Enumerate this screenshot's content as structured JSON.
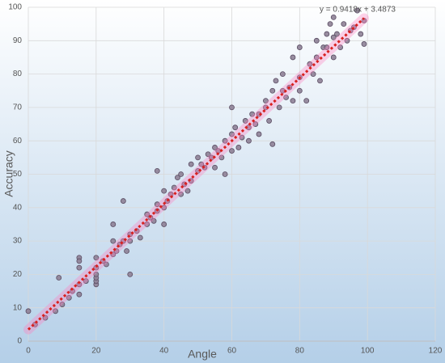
{
  "chart_data": {
    "type": "scatter",
    "x_label": "Angle",
    "y_label": "Accuracy",
    "x": [
      0,
      2,
      5,
      8,
      9,
      10,
      12,
      13,
      15,
      15,
      15,
      15,
      15,
      17,
      20,
      20,
      20,
      20,
      20,
      20,
      22,
      23,
      25,
      25,
      25,
      26,
      27,
      28,
      28,
      29,
      30,
      30,
      30,
      32,
      33,
      35,
      35,
      36,
      37,
      38,
      38,
      38,
      40,
      40,
      40,
      41,
      42,
      43,
      44,
      45,
      45,
      46,
      47,
      48,
      48,
      50,
      50,
      51,
      52,
      53,
      54,
      55,
      55,
      56,
      57,
      58,
      58,
      60,
      60,
      60,
      61,
      62,
      63,
      64,
      65,
      65,
      66,
      67,
      68,
      68,
      70,
      70,
      71,
      72,
      72,
      73,
      74,
      75,
      75,
      76,
      77,
      78,
      78,
      80,
      80,
      80,
      82,
      83,
      84,
      85,
      85,
      86,
      87,
      88,
      88,
      89,
      90,
      90,
      90,
      91,
      92,
      93,
      94,
      95,
      96,
      97,
      98,
      99,
      99
    ],
    "values": [
      9,
      5,
      7,
      9,
      19,
      11,
      13,
      15,
      25,
      24,
      22,
      17,
      14,
      18,
      17,
      18,
      19,
      20,
      25,
      22,
      24,
      23,
      35,
      30,
      26,
      27,
      29,
      42,
      30,
      27,
      20,
      30,
      32,
      33,
      31,
      35,
      38,
      37,
      36,
      51,
      41,
      39,
      35,
      45,
      40,
      42,
      44,
      46,
      49,
      50,
      44,
      47,
      45,
      48,
      53,
      51,
      55,
      53,
      52,
      56,
      55,
      58,
      52,
      57,
      55,
      60,
      50,
      70,
      57,
      62,
      64,
      58,
      61,
      66,
      64,
      60,
      68,
      65,
      68,
      62,
      70,
      72,
      66,
      75,
      59,
      78,
      70,
      75,
      80,
      73,
      76,
      72,
      85,
      79,
      75,
      88,
      72,
      83,
      80,
      85,
      90,
      78,
      88,
      92,
      88,
      95,
      97,
      91,
      85,
      92,
      88,
      95,
      90,
      93,
      94,
      99,
      92,
      96,
      89
    ],
    "color": "#8e8196",
    "trendline": {
      "label": "y = 0.9418x + 3.4873",
      "slope": 0.9418,
      "intercept": 3.4873,
      "color": "#d9201f"
    },
    "xlim": [
      0,
      120
    ],
    "xticks": [
      0,
      20,
      40,
      60,
      80,
      100,
      120
    ],
    "ylim": [
      0,
      100
    ],
    "yticks": [
      0,
      10,
      20,
      30,
      40,
      50,
      60,
      70,
      80,
      90,
      100
    ],
    "grid": true
  }
}
